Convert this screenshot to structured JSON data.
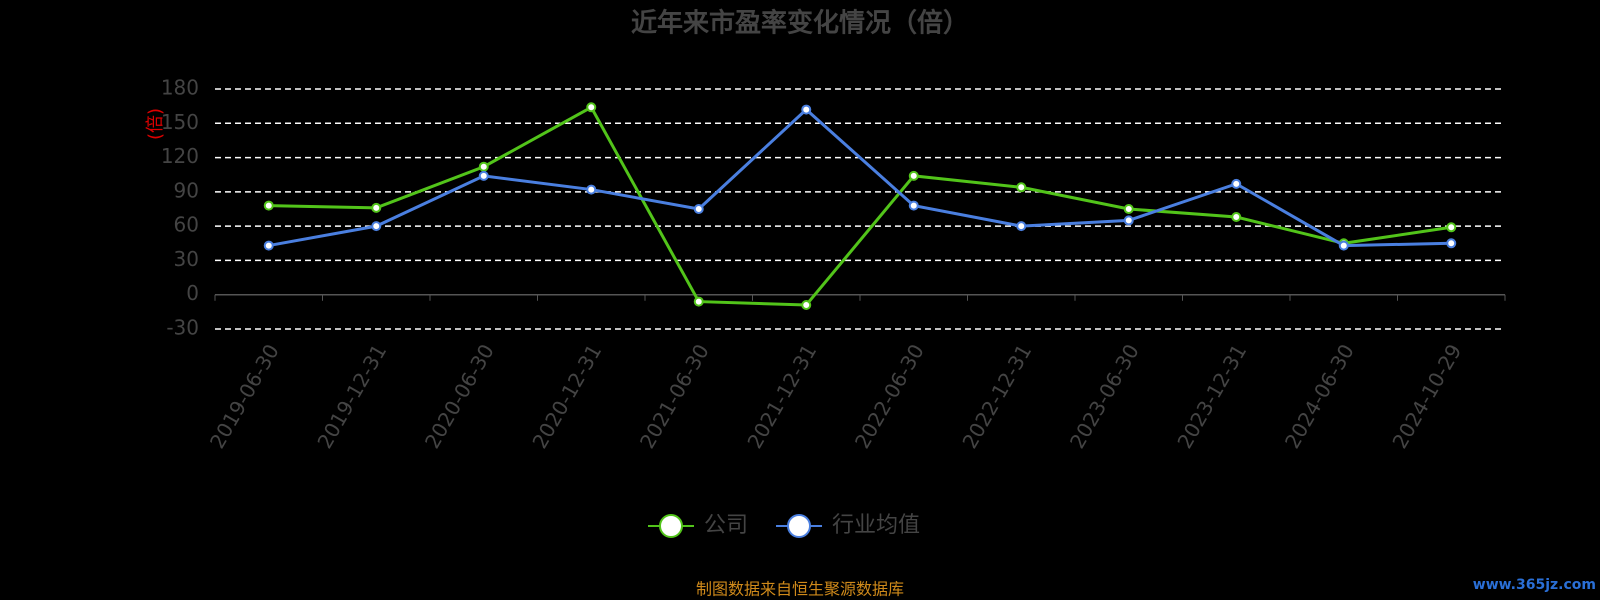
{
  "chart_data": {
    "type": "line",
    "title": "近年来市盈率变化情况（倍）",
    "y_label": "(倍)",
    "categories": [
      "2019-06-30",
      "2019-12-31",
      "2020-06-30",
      "2020-12-31",
      "2021-06-30",
      "2021-12-31",
      "2022-06-30",
      "2022-12-31",
      "2023-06-30",
      "2023-12-31",
      "2024-06-30",
      "2024-10-29"
    ],
    "series": [
      {
        "name": "公司",
        "color": "#52c41a",
        "values": [
          78,
          76,
          112,
          164,
          -6,
          -9,
          104,
          94,
          75,
          68,
          45,
          59
        ]
      },
      {
        "name": "行业均值",
        "color": "#4a7fe0",
        "values": [
          43,
          60,
          104,
          92,
          75,
          162,
          78,
          60,
          65,
          97,
          43,
          45
        ]
      }
    ],
    "ylim": [
      -30,
      180
    ],
    "yticks": [
      -30,
      0,
      30,
      60,
      90,
      120,
      150,
      180
    ],
    "grid": true,
    "source": "制图数据来自恒生聚源数据库",
    "watermark": "www.365jz.com"
  }
}
